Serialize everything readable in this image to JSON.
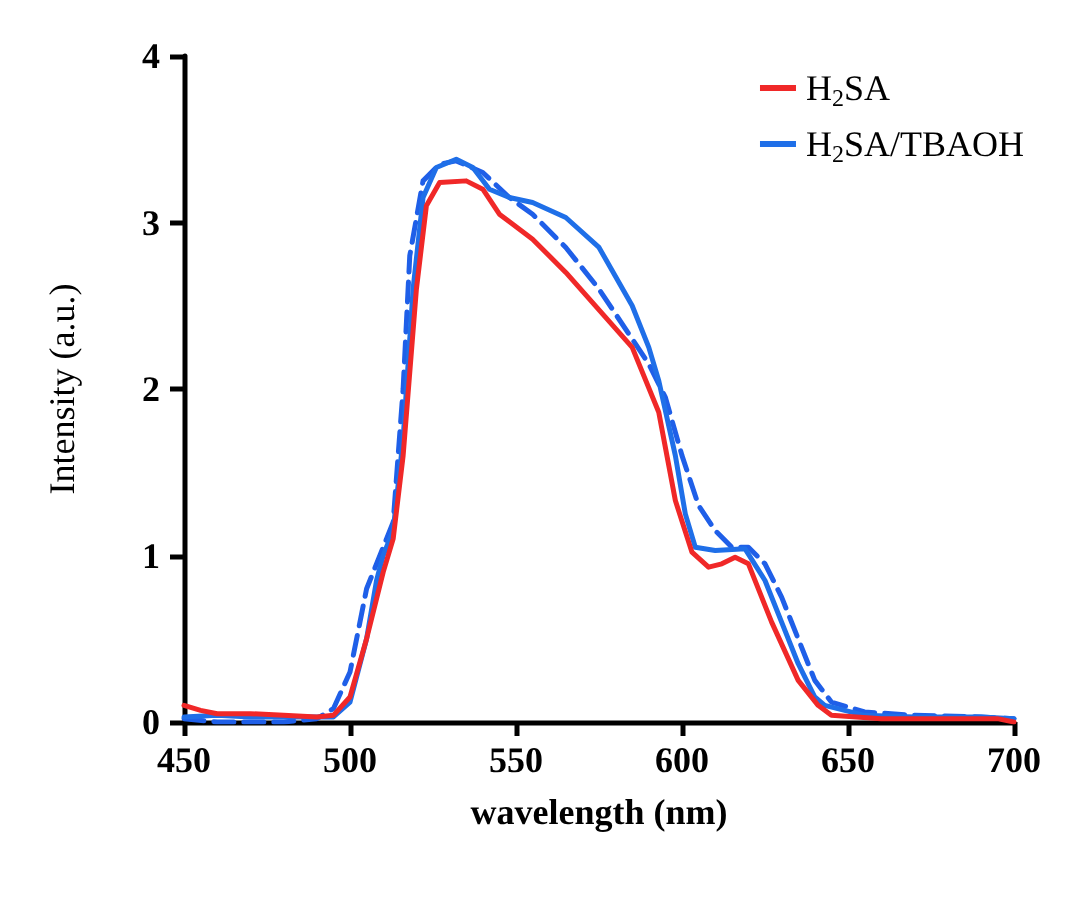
{
  "chart_data": {
    "type": "line",
    "xlabel": "wavelength (nm)",
    "ylabel": "Intensity (a.u.)",
    "xlim": [
      450,
      700
    ],
    "xticks": [
      450,
      500,
      550,
      600,
      650,
      700
    ],
    "ylim": [
      0,
      4
    ],
    "yticks": [
      0,
      1,
      2,
      3,
      4
    ],
    "grid": false,
    "legend": "top right",
    "marker": "none",
    "series": [
      {
        "name": "H$_{2}$SA",
        "color": "#f02828",
        "line_style": "solid",
        "x": [
          450,
          455,
          460,
          470,
          480,
          490,
          495,
          500,
          505,
          510,
          513,
          516,
          520,
          523,
          527,
          535,
          540,
          545,
          555,
          565,
          577,
          585,
          593,
          598,
          603,
          608,
          612,
          616,
          620,
          627,
          635,
          641,
          645,
          660,
          680,
          695,
          700
        ],
        "values": [
          0.1,
          0.07,
          0.05,
          0.05,
          0.04,
          0.03,
          0.04,
          0.15,
          0.5,
          0.9,
          1.1,
          1.6,
          2.6,
          3.1,
          3.24,
          3.25,
          3.2,
          3.05,
          2.9,
          2.7,
          2.43,
          2.25,
          1.86,
          1.33,
          1.02,
          0.93,
          0.95,
          0.99,
          0.95,
          0.6,
          0.25,
          0.1,
          0.04,
          0.02,
          0.02,
          0.02,
          0.0
        ]
      },
      {
        "name": "H$_{2}$SA/TBAOH",
        "color": "#1f6fe8",
        "line_style": "solid",
        "x": [
          450,
          460,
          470,
          480,
          490,
          495,
          500,
          505,
          508,
          510,
          513,
          516,
          519,
          522,
          526,
          532,
          537,
          542,
          548,
          555,
          565,
          575,
          585,
          590,
          593,
          598,
          601,
          604,
          610,
          619,
          625,
          630,
          635,
          640,
          643,
          655,
          670,
          690,
          700
        ],
        "values": [
          0.03,
          0.04,
          0.03,
          0.03,
          0.03,
          0.03,
          0.12,
          0.5,
          0.85,
          1.0,
          1.15,
          1.7,
          2.6,
          3.15,
          3.33,
          3.38,
          3.33,
          3.2,
          3.15,
          3.12,
          3.03,
          2.85,
          2.5,
          2.25,
          2.05,
          1.6,
          1.25,
          1.05,
          1.03,
          1.04,
          0.85,
          0.6,
          0.35,
          0.15,
          0.1,
          0.04,
          0.03,
          0.03,
          0.02
        ]
      },
      {
        "color": "#1f5fe8",
        "line_style": "dashed",
        "x": [
          450,
          460,
          480,
          490,
          495,
          500,
          505,
          510,
          513,
          516,
          518,
          522,
          527,
          532,
          540,
          548,
          555,
          565,
          575,
          585,
          590,
          595,
          600,
          605,
          610,
          615,
          620,
          625,
          630,
          635,
          640,
          645,
          655,
          670,
          690,
          700
        ],
        "values": [
          0.02,
          0.0,
          0.0,
          0.02,
          0.08,
          0.3,
          0.8,
          1.05,
          1.2,
          2.0,
          2.8,
          3.25,
          3.35,
          3.37,
          3.3,
          3.15,
          3.05,
          2.85,
          2.6,
          2.3,
          2.15,
          1.95,
          1.6,
          1.3,
          1.15,
          1.05,
          1.05,
          0.95,
          0.75,
          0.5,
          0.25,
          0.12,
          0.06,
          0.04,
          0.03,
          0.02
        ]
      }
    ]
  }
}
